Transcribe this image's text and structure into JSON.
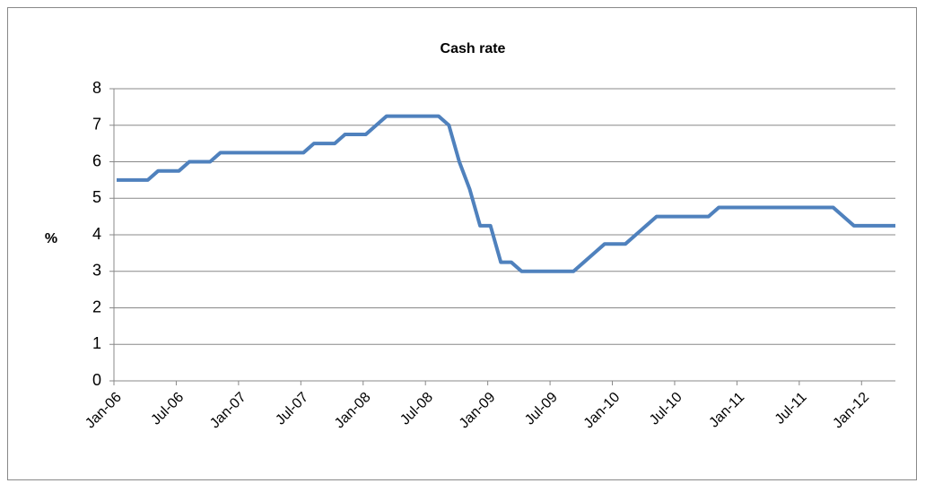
{
  "chart_data": {
    "type": "line",
    "title": "Cash rate",
    "y_label": "%",
    "categories": [
      "Jan-06",
      null,
      null,
      null,
      null,
      null,
      "Jul-06",
      null,
      null,
      null,
      null,
      null,
      "Jan-07",
      null,
      null,
      null,
      null,
      null,
      "Jul-07",
      null,
      null,
      null,
      null,
      null,
      "Jan-08",
      null,
      null,
      null,
      null,
      null,
      "Jul-08",
      null,
      null,
      null,
      null,
      null,
      "Jan-09",
      null,
      null,
      null,
      null,
      null,
      "Jul-09",
      null,
      null,
      null,
      null,
      null,
      "Jan-10",
      null,
      null,
      null,
      null,
      null,
      "Jul-10",
      null,
      null,
      null,
      null,
      null,
      "Jan-11",
      null,
      null,
      null,
      null,
      null,
      "Jul-11",
      null,
      null,
      null,
      null,
      null,
      "Jan-12",
      null,
      null,
      null
    ],
    "series": [
      {
        "name": "Cash rate",
        "color": "#4f81bd",
        "values": [
          5.5,
          5.5,
          5.5,
          5.5,
          5.75,
          5.75,
          5.75,
          6,
          6,
          6,
          6.25,
          6.25,
          6.25,
          6.25,
          6.25,
          6.25,
          6.25,
          6.25,
          6.25,
          6.5,
          6.5,
          6.5,
          6.75,
          6.75,
          6.75,
          7,
          7.25,
          7.25,
          7.25,
          7.25,
          7.25,
          7.25,
          7,
          6,
          5.25,
          4.25,
          4.25,
          3.25,
          3.25,
          3,
          3,
          3,
          3,
          3,
          3,
          3.25,
          3.5,
          3.75,
          3.75,
          3.75,
          4,
          4.25,
          4.5,
          4.5,
          4.5,
          4.5,
          4.5,
          4.5,
          4.75,
          4.75,
          4.75,
          4.75,
          4.75,
          4.75,
          4.75,
          4.75,
          4.75,
          4.75,
          4.75,
          4.75,
          4.5,
          4.25,
          4.25,
          4.25,
          4.25,
          4.25
        ]
      }
    ],
    "ylim": [
      0,
      8
    ],
    "yticks": [
      0,
      1,
      2,
      3,
      4,
      5,
      6,
      7,
      8
    ],
    "grid": true,
    "legend": false
  }
}
